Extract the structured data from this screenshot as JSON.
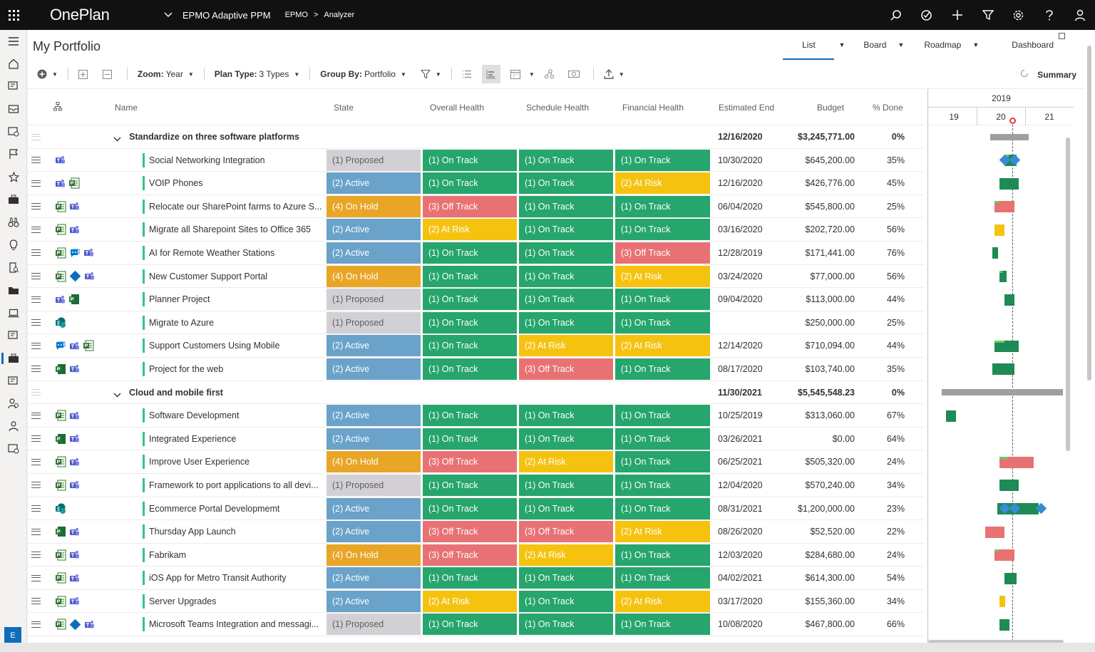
{
  "topbar": {
    "brand": "OnePlan",
    "app_name": "EPMO Adaptive PPM",
    "breadcrumb": [
      "EPMO",
      "Analyzer"
    ],
    "icons": [
      "search-icon",
      "check-circle-icon",
      "plus-icon",
      "filter-icon",
      "gear-icon",
      "help-icon",
      "user-icon"
    ]
  },
  "rail": {
    "icons": [
      "hamburger-icon",
      "home-icon",
      "report-icon",
      "inbox-icon",
      "report-icon",
      "flag-icon",
      "star-icon",
      "briefcase-icon",
      "binoculars-icon",
      "lightbulb-icon",
      "document-search-icon",
      "folder-icon",
      "laptop-icon",
      "report-icon",
      "portfolio-icon",
      "report-icon",
      "people-icon",
      "person-icon",
      "report-icon"
    ],
    "active_index": 14,
    "user_badge": "E"
  },
  "page": {
    "title": "My Portfolio",
    "view_tabs": [
      {
        "label": "List",
        "has_dropdown": true,
        "selected": true
      },
      {
        "label": "Board",
        "has_dropdown": true,
        "selected": false
      },
      {
        "label": "Roadmap",
        "has_dropdown": true,
        "selected": false
      },
      {
        "label": "Dashboard",
        "has_dropdown": false,
        "selected": false
      }
    ]
  },
  "toolbar": {
    "zoom_label": "Zoom:",
    "zoom_value": "Year",
    "plan_type_label": "Plan Type:",
    "plan_type_value": "3 Types",
    "group_by_label": "Group By:",
    "group_by_value": "Portfolio",
    "summary_label": "Summary"
  },
  "columns": {
    "name": "Name",
    "state": "State",
    "overall": "Overall Health",
    "schedule": "Schedule Health",
    "financial": "Financial Health",
    "end": "Estimated End",
    "budget": "Budget",
    "pct": "% Done"
  },
  "gantt_header": {
    "year": "2019",
    "quarters": [
      "19",
      "20",
      "21"
    ]
  },
  "status_colors": {
    "proposed": "#d2d0d4",
    "active": "#6aa2c9",
    "hold": "#e8a526",
    "ontrack": "#26a56d",
    "offtrack": "#e87273",
    "atrisk": "#f5c30f"
  },
  "rows": [
    {
      "type": "group",
      "name": "Standardize on three software platforms",
      "end": "12/16/2020",
      "budget": "$3,245,771.00",
      "pct": "0%"
    },
    {
      "type": "item",
      "icons": [
        "teams"
      ],
      "name": "Social Networking Integration",
      "state": "(1) Proposed",
      "overall": "(1) On Track",
      "schedule": "(1) On Track",
      "financial": "(1) On Track",
      "end": "10/30/2020",
      "budget": "$645,200.00",
      "pct": "35%"
    },
    {
      "type": "item",
      "icons": [
        "teams",
        "project"
      ],
      "name": "VOIP Phones",
      "state": "(2) Active",
      "overall": "(1) On Track",
      "schedule": "(1) On Track",
      "financial": "(2) At Risk",
      "end": "12/16/2020",
      "budget": "$426,776.00",
      "pct": "45%"
    },
    {
      "type": "item",
      "icons": [
        "project",
        "teams"
      ],
      "name": "Relocate our SharePoint farms to Azure S...",
      "state": "(4) On Hold",
      "overall": "(3) Off Track",
      "schedule": "(1) On Track",
      "financial": "(1) On Track",
      "end": "06/04/2020",
      "budget": "$545,800.00",
      "pct": "25%"
    },
    {
      "type": "item",
      "icons": [
        "project",
        "teams"
      ],
      "name": "Migrate all Sharepoint Sites to Office 365",
      "state": "(2) Active",
      "overall": "(2) At Risk",
      "schedule": "(1) On Track",
      "financial": "(1) On Track",
      "end": "03/16/2020",
      "budget": "$202,720.00",
      "pct": "56%"
    },
    {
      "type": "item",
      "icons": [
        "project",
        "bot",
        "teams"
      ],
      "name": "AI for Remote Weather Stations",
      "state": "(2) Active",
      "overall": "(1) On Track",
      "schedule": "(1) On Track",
      "financial": "(3) Off Track",
      "end": "12/28/2019",
      "budget": "$171,441.00",
      "pct": "76%"
    },
    {
      "type": "item",
      "icons": [
        "project",
        "diamond",
        "teams"
      ],
      "name": "New Customer Support Portal",
      "state": "(4) On Hold",
      "overall": "(1) On Track",
      "schedule": "(1) On Track",
      "financial": "(2) At Risk",
      "end": "03/24/2020",
      "budget": "$77,000.00",
      "pct": "56%"
    },
    {
      "type": "item",
      "icons": [
        "teams",
        "planner"
      ],
      "name": "Planner Project",
      "state": "(1) Proposed",
      "overall": "(1) On Track",
      "schedule": "(1) On Track",
      "financial": "(1) On Track",
      "end": "09/04/2020",
      "budget": "$113,000.00",
      "pct": "44%"
    },
    {
      "type": "item",
      "icons": [
        "sharepoint"
      ],
      "name": "Migrate to Azure",
      "state": "(1) Proposed",
      "overall": "(1) On Track",
      "schedule": "(1) On Track",
      "financial": "(1) On Track",
      "end": "",
      "budget": "$250,000.00",
      "pct": "25%"
    },
    {
      "type": "item",
      "icons": [
        "bot",
        "teams",
        "project"
      ],
      "name": "Support Customers Using Mobile",
      "state": "(2) Active",
      "overall": "(1) On Track",
      "schedule": "(2) At Risk",
      "financial": "(2) At Risk",
      "end": "12/14/2020",
      "budget": "$710,094.00",
      "pct": "44%"
    },
    {
      "type": "item",
      "icons": [
        "planner",
        "teams"
      ],
      "name": "Project for the web",
      "state": "(2) Active",
      "overall": "(1) On Track",
      "schedule": "(3) Off Track",
      "financial": "(1) On Track",
      "end": "08/17/2020",
      "budget": "$103,740.00",
      "pct": "35%"
    },
    {
      "type": "group",
      "name": "Cloud and mobile first",
      "end": "11/30/2021",
      "budget": "$5,545,548.23",
      "pct": "0%"
    },
    {
      "type": "item",
      "icons": [
        "project",
        "teams"
      ],
      "name": "Software Development",
      "state": "(2) Active",
      "overall": "(1) On Track",
      "schedule": "(1) On Track",
      "financial": "(1) On Track",
      "end": "10/25/2019",
      "budget": "$313,060.00",
      "pct": "67%"
    },
    {
      "type": "item",
      "icons": [
        "planner",
        "teams"
      ],
      "name": "Integrated Experience",
      "state": "(2) Active",
      "overall": "(1) On Track",
      "schedule": "(1) On Track",
      "financial": "(1) On Track",
      "end": "03/26/2021",
      "budget": "$0.00",
      "pct": "64%"
    },
    {
      "type": "item",
      "icons": [
        "project",
        "teams"
      ],
      "name": "Improve User Experience",
      "state": "(4) On Hold",
      "overall": "(3) Off Track",
      "schedule": "(2) At Risk",
      "financial": "(1) On Track",
      "end": "06/25/2021",
      "budget": "$505,320.00",
      "pct": "24%"
    },
    {
      "type": "item",
      "icons": [
        "project",
        "teams"
      ],
      "name": "Framework to port applications to all devi...",
      "state": "(1) Proposed",
      "overall": "(1) On Track",
      "schedule": "(1) On Track",
      "financial": "(1) On Track",
      "end": "12/04/2020",
      "budget": "$570,240.00",
      "pct": "34%"
    },
    {
      "type": "item",
      "icons": [
        "sharepoint"
      ],
      "name": "Ecommerce Portal Developmemt",
      "state": "(2) Active",
      "overall": "(1) On Track",
      "schedule": "(1) On Track",
      "financial": "(1) On Track",
      "end": "08/31/2021",
      "budget": "$1,200,000.00",
      "pct": "23%"
    },
    {
      "type": "item",
      "icons": [
        "planner",
        "teams"
      ],
      "name": "Thursday App Launch",
      "state": "(2) Active",
      "overall": "(3) Off Track",
      "schedule": "(3) Off Track",
      "financial": "(2) At Risk",
      "end": "08/26/2020",
      "budget": "$52,520.00",
      "pct": "22%"
    },
    {
      "type": "item",
      "icons": [
        "project",
        "teams"
      ],
      "name": "Fabrikam",
      "state": "(4) On Hold",
      "overall": "(3) Off Track",
      "schedule": "(2) At Risk",
      "financial": "(1) On Track",
      "end": "12/03/2020",
      "budget": "$284,680.00",
      "pct": "24%"
    },
    {
      "type": "item",
      "icons": [
        "project",
        "teams"
      ],
      "name": "iOS App for Metro Transit Authority",
      "state": "(2) Active",
      "overall": "(1) On Track",
      "schedule": "(1) On Track",
      "financial": "(1) On Track",
      "end": "04/02/2021",
      "budget": "$614,300.00",
      "pct": "54%"
    },
    {
      "type": "item",
      "icons": [
        "project",
        "teams"
      ],
      "name": "Server Upgrades",
      "state": "(2) Active",
      "overall": "(2) At Risk",
      "schedule": "(1) On Track",
      "financial": "(2) At Risk",
      "end": "03/17/2020",
      "budget": "$155,360.00",
      "pct": "34%"
    },
    {
      "type": "item",
      "icons": [
        "project",
        "diamond",
        "teams"
      ],
      "name": "Microsoft Teams Integration and messagi...",
      "state": "(1) Proposed",
      "overall": "(1) On Track",
      "schedule": "(1) On Track",
      "financial": "(1) On Track",
      "end": "10/08/2020",
      "budget": "$467,800.00",
      "pct": "66%"
    }
  ],
  "gantt_bars": [
    {
      "kind": "group",
      "color": "gray",
      "start_year": 2019.7,
      "end_year": 2020.5
    },
    {
      "kind": "item",
      "color": "green",
      "start_year": 2020.0,
      "end_year": 2020.25,
      "progress": 0.35,
      "milestones": [
        2020.0,
        2020.2
      ]
    },
    {
      "kind": "item",
      "color": "green",
      "start_year": 2019.9,
      "end_year": 2020.3,
      "progress": 0.0
    },
    {
      "kind": "item",
      "color": "red",
      "start_year": 2019.8,
      "end_year": 2020.2,
      "progress": 0.25
    },
    {
      "kind": "item",
      "color": "yellow",
      "start_year": 2019.8,
      "end_year": 2020.0,
      "progress": 0.0
    },
    {
      "kind": "item",
      "color": "green",
      "start_year": 2019.75,
      "end_year": 2019.82,
      "progress": 0.0
    },
    {
      "kind": "item",
      "color": "green",
      "start_year": 2019.9,
      "end_year": 2020.05,
      "progress": 0.4
    },
    {
      "kind": "item",
      "color": "green",
      "start_year": 2020.0,
      "end_year": 2020.2,
      "progress": 0.0
    },
    {
      "kind": "none"
    },
    {
      "kind": "item",
      "color": "green",
      "start_year": 2019.8,
      "end_year": 2020.3,
      "progress": 0.4
    },
    {
      "kind": "item",
      "color": "green",
      "start_year": 2019.75,
      "end_year": 2020.2,
      "progress": 0.0
    },
    {
      "kind": "group",
      "color": "gray",
      "start_year": 2018.7,
      "end_year": 2021.2
    },
    {
      "kind": "item",
      "color": "green",
      "start_year": 2018.8,
      "end_year": 2019.0,
      "progress": 0.0
    },
    {
      "kind": "none"
    },
    {
      "kind": "item",
      "color": "red",
      "start_year": 2019.9,
      "end_year": 2020.6,
      "progress": 0.25
    },
    {
      "kind": "item",
      "color": "green",
      "start_year": 2019.9,
      "end_year": 2020.3,
      "progress": 0.0
    },
    {
      "kind": "item",
      "color": "green",
      "start_year": 2019.85,
      "end_year": 2020.7,
      "progress": 0.0,
      "milestones": [
        2020.0,
        2020.2,
        2020.75
      ]
    },
    {
      "kind": "item",
      "color": "red",
      "start_year": 2019.6,
      "end_year": 2020.0,
      "progress": 0.0
    },
    {
      "kind": "item",
      "color": "red",
      "start_year": 2019.8,
      "end_year": 2020.2,
      "progress": 0.2
    },
    {
      "kind": "item",
      "color": "green",
      "start_year": 2020.0,
      "end_year": 2020.25,
      "progress": 0.0
    },
    {
      "kind": "item",
      "color": "yellow",
      "start_year": 2019.9,
      "end_year": 2020.0,
      "progress": 0.0
    },
    {
      "kind": "item",
      "color": "green",
      "start_year": 2019.9,
      "end_year": 2020.1,
      "progress": 0.0
    }
  ]
}
